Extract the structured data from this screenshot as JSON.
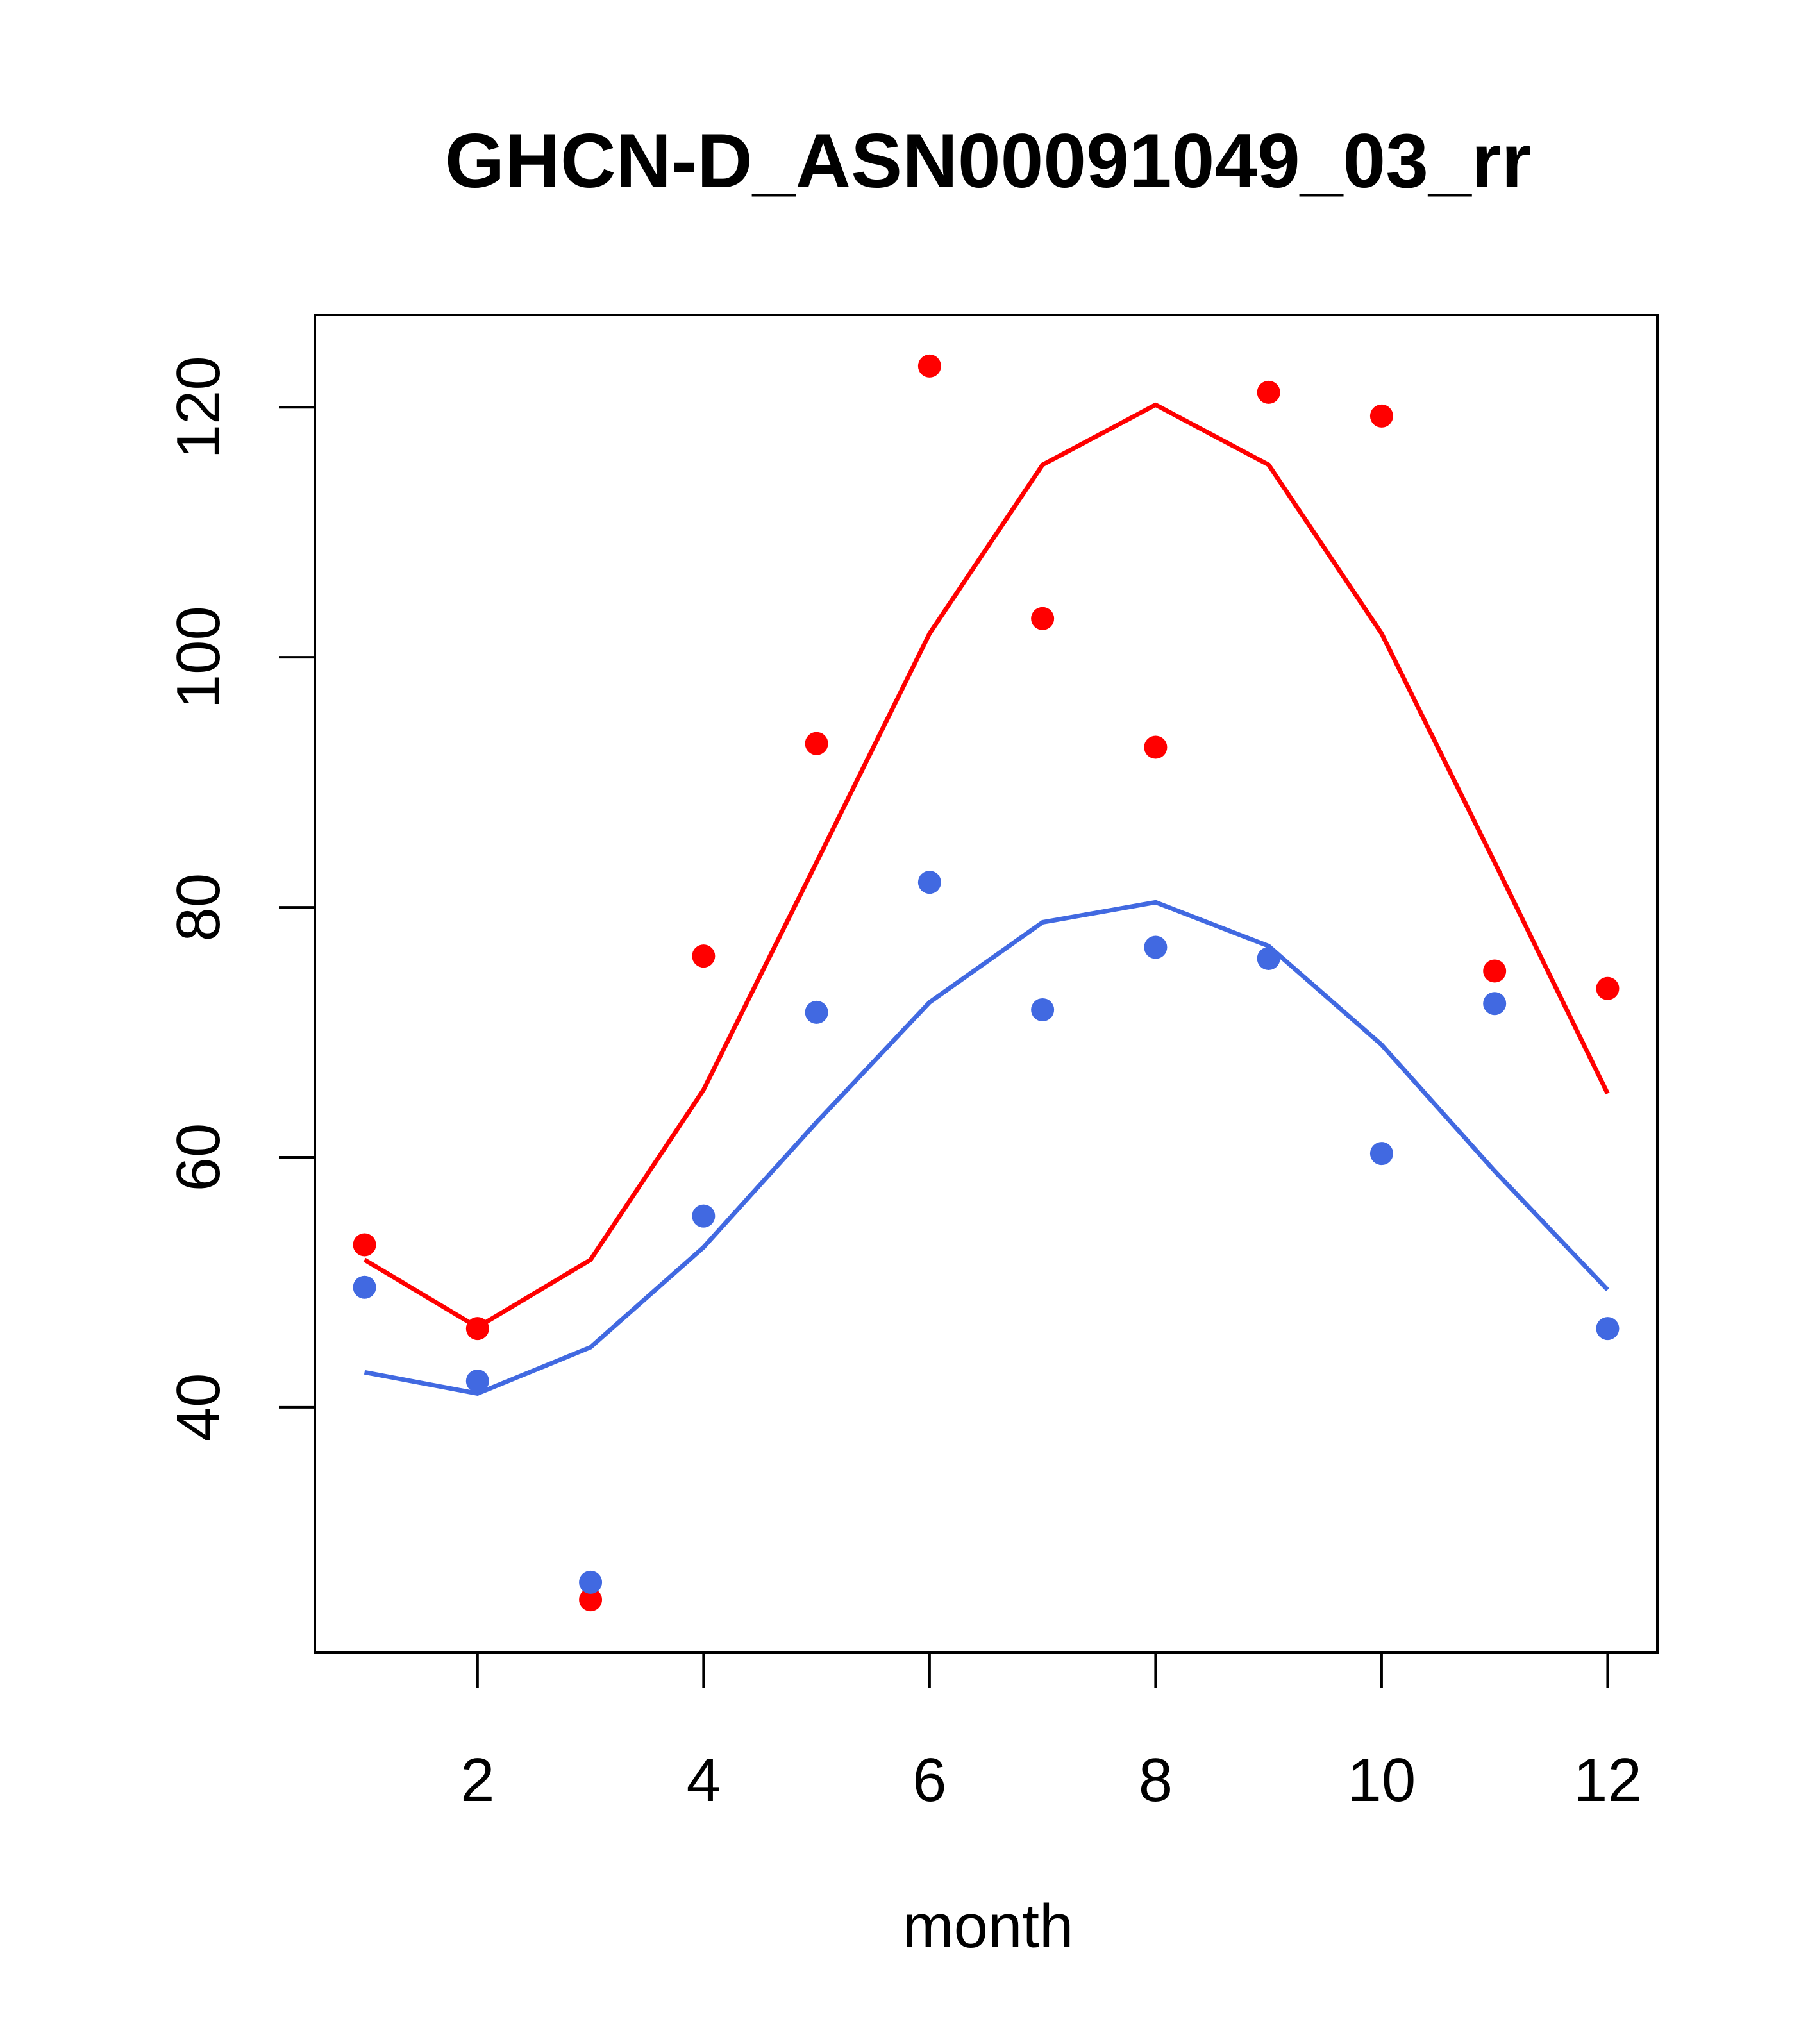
{
  "chart_data": {
    "type": "scatter",
    "title": "GHCN-D_ASN00091049_03_rr",
    "xlabel": "month",
    "ylabel": "",
    "xlim": [
      0.56,
      12.44
    ],
    "ylim": [
      20.4,
      127.4
    ],
    "x_ticks": [
      2,
      4,
      6,
      8,
      10,
      12
    ],
    "y_ticks": [
      40,
      60,
      80,
      100,
      120
    ],
    "grid": false,
    "legend": "none",
    "series": [
      {
        "name": "red points",
        "kind": "points",
        "color": "#ff0000",
        "x": [
          1,
          2,
          3,
          4,
          5,
          6,
          7,
          8,
          9,
          10,
          11,
          12
        ],
        "values": [
          53.0,
          46.3,
          24.6,
          76.1,
          93.1,
          123.3,
          103.1,
          92.8,
          121.2,
          119.3,
          74.9,
          73.5
        ]
      },
      {
        "name": "blue points",
        "kind": "points",
        "color": "#4169e1",
        "x": [
          1,
          2,
          3,
          4,
          5,
          6,
          7,
          8,
          9,
          10,
          11,
          12
        ],
        "values": [
          49.6,
          42.1,
          26.0,
          55.3,
          71.6,
          82.0,
          71.8,
          76.8,
          75.9,
          60.3,
          72.3,
          46.3
        ]
      },
      {
        "name": "red line",
        "kind": "line",
        "color": "#ff0000",
        "x": [
          1,
          2,
          3,
          4,
          5,
          6,
          7,
          8,
          9,
          10,
          11,
          12
        ],
        "values": [
          51.8,
          46.4,
          51.8,
          65.4,
          83.6,
          101.9,
          115.4,
          120.2,
          115.4,
          101.9,
          83.6,
          65.1
        ]
      },
      {
        "name": "blue line",
        "kind": "line",
        "color": "#4169e1",
        "x": [
          1,
          2,
          3,
          4,
          5,
          6,
          7,
          8,
          9,
          10,
          11,
          12
        ],
        "values": [
          42.8,
          41.1,
          44.8,
          52.8,
          62.8,
          72.4,
          78.8,
          80.4,
          76.9,
          69.0,
          58.9,
          49.4
        ]
      }
    ]
  }
}
